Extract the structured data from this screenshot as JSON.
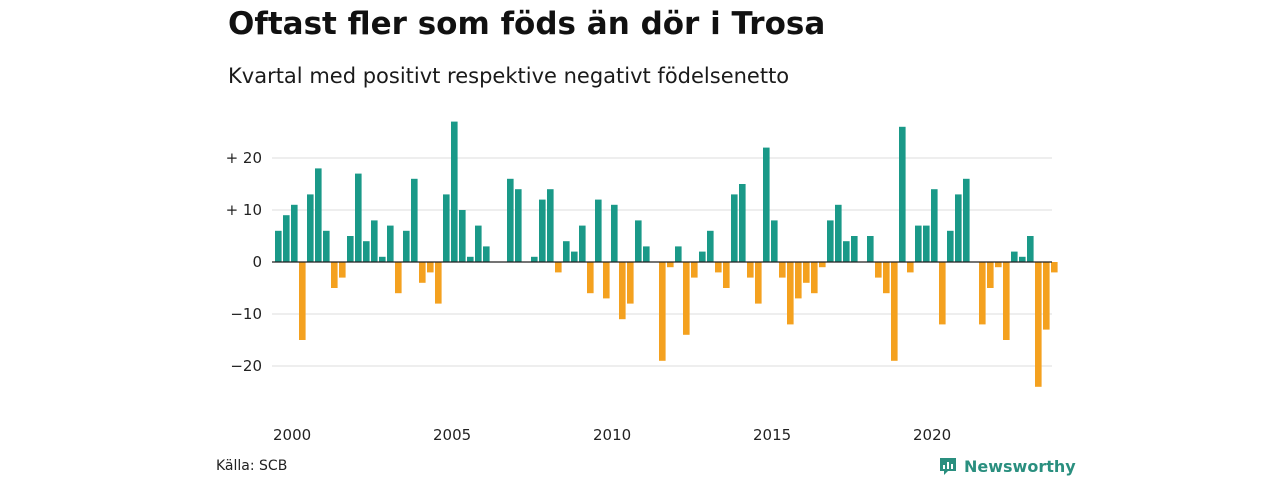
{
  "title": "Oftast fler som föds än dör i Trosa",
  "subtitle": "Kvartal med positivt respektive negativt födelsenetto",
  "source": "Källa: SCB",
  "brand": "Newsworthy",
  "colors": {
    "positive": "#1a9988",
    "negative": "#f4a11f",
    "grid": "#dddddd",
    "zero": "#222222",
    "brand": "#2a8f7f"
  },
  "chart_data": {
    "type": "bar",
    "x_start": "2000 Q1",
    "x_ticks": [
      "2000",
      "2005",
      "2010",
      "2015",
      "2020"
    ],
    "y_ticks": [
      "+ 20",
      "+ 10",
      "0",
      "−10",
      "−20"
    ],
    "y_tick_values": [
      20,
      10,
      0,
      -10,
      -20
    ],
    "ylim": [
      -26,
      28
    ],
    "grid": true,
    "values": [
      6,
      9,
      11,
      -15,
      13,
      18,
      6,
      -5,
      -3,
      5,
      17,
      4,
      8,
      1,
      7,
      -6,
      6,
      16,
      -4,
      -2,
      -8,
      13,
      27,
      10,
      1,
      7,
      3,
      0,
      0,
      16,
      14,
      0,
      1,
      12,
      14,
      -2,
      4,
      2,
      7,
      -6,
      12,
      -7,
      11,
      -11,
      -8,
      8,
      3,
      0,
      -19,
      -1,
      3,
      -14,
      -3,
      2,
      6,
      -2,
      -5,
      13,
      15,
      -3,
      -8,
      22,
      8,
      -3,
      -12,
      -7,
      -4,
      -6,
      -1,
      8,
      11,
      4,
      5,
      0,
      5,
      -3,
      -6,
      -19,
      26,
      -2,
      7,
      7,
      14,
      -12,
      6,
      13,
      16,
      0,
      -12,
      -5,
      -1,
      -15,
      2,
      1,
      5,
      -24,
      -13,
      -2
    ]
  }
}
